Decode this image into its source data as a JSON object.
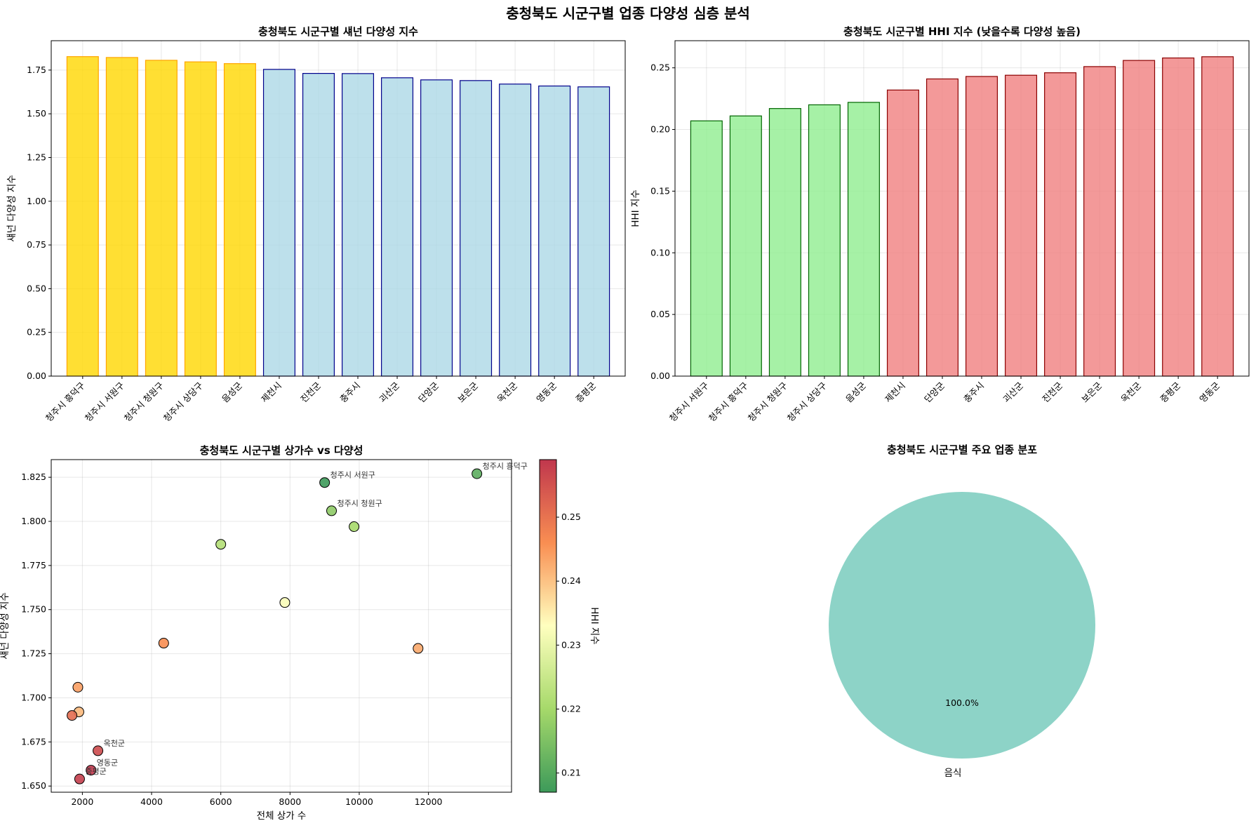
{
  "suptitle": "충청북도 시군구별 업종 다양성 심층 분석",
  "colors": {
    "top_fill": "#FFD700",
    "top_edge": "#FFA500",
    "rest_fill": "#ADD8E6",
    "rest_edge": "#00008B",
    "low_fill": "#90EE90",
    "low_edge": "#006400",
    "high_fill": "#F08080",
    "high_edge": "#8B0000",
    "pie": "#8DD3C7"
  },
  "chart_data": [
    {
      "type": "bar",
      "title": "충청북도 시군구별 섀넌 다양성 지수",
      "xlabel": "",
      "ylabel": "섀넌 다양성 지수",
      "categories": [
        "청주시 흥덕구",
        "청주시 서원구",
        "청주시 청원구",
        "청주시 상당구",
        "음성군",
        "제천시",
        "진천군",
        "충주시",
        "괴산군",
        "단양군",
        "보은군",
        "옥천군",
        "영동군",
        "증평군"
      ],
      "values": [
        1.827,
        1.822,
        1.806,
        1.797,
        1.787,
        1.754,
        1.731,
        1.73,
        1.706,
        1.694,
        1.69,
        1.67,
        1.659,
        1.654
      ],
      "highlight_top": 5,
      "ylim": [
        0,
        1.918
      ],
      "yticks": [
        0.0,
        0.25,
        0.5,
        0.75,
        1.0,
        1.25,
        1.5,
        1.75
      ],
      "ytick_labels": [
        "0.00",
        "0.25",
        "0.50",
        "0.75",
        "1.00",
        "1.25",
        "1.50",
        "1.75"
      ],
      "grid": true
    },
    {
      "type": "bar",
      "title": "충청북도 시군구별 HHI 지수 (낮을수록 다양성 높음)",
      "xlabel": "",
      "ylabel": "HHI 지수",
      "categories": [
        "청주시 서원구",
        "청주시 흥덕구",
        "청주시 청원구",
        "청주시 상당구",
        "음성군",
        "제천시",
        "단양군",
        "충주시",
        "괴산군",
        "진천군",
        "보은군",
        "옥천군",
        "증평군",
        "영동군"
      ],
      "values": [
        0.207,
        0.211,
        0.217,
        0.22,
        0.222,
        0.232,
        0.241,
        0.243,
        0.244,
        0.246,
        0.251,
        0.256,
        0.258,
        0.259
      ],
      "highlight_low": 5,
      "ylim": [
        0,
        0.272
      ],
      "yticks": [
        0.0,
        0.05,
        0.1,
        0.15,
        0.2,
        0.25
      ],
      "ytick_labels": [
        "0.00",
        "0.05",
        "0.10",
        "0.15",
        "0.20",
        "0.25"
      ],
      "grid": true
    },
    {
      "type": "scatter",
      "title": "충청북도 시군구별 상가수 vs 다양성",
      "xlabel": "전체 상가 수",
      "ylabel": "섀넌 다양성 지수",
      "colorbar_label": "HHI 지수",
      "colormap": "RdYlGn_r",
      "xlim": [
        1100,
        14400
      ],
      "ylim": [
        1.6465,
        1.835
      ],
      "xticks": [
        2000,
        4000,
        6000,
        8000,
        10000,
        12000
      ],
      "xtick_labels": [
        "2000",
        "4000",
        "6000",
        "8000",
        "10000",
        "12000"
      ],
      "yticks": [
        1.65,
        1.675,
        1.7,
        1.725,
        1.75,
        1.775,
        1.8,
        1.825
      ],
      "ytick_labels": [
        "1.650",
        "1.675",
        "1.700",
        "1.725",
        "1.750",
        "1.775",
        "1.800",
        "1.825"
      ],
      "clim": [
        0.207,
        0.259
      ],
      "cticks": [
        0.21,
        0.22,
        0.23,
        0.24,
        0.25
      ],
      "ctick_labels": [
        "0.21",
        "0.22",
        "0.23",
        "0.24",
        "0.25"
      ],
      "points": [
        {
          "x": 13400,
          "y": 1.827,
          "hhi": 0.211,
          "label": "청주시 흥덕구"
        },
        {
          "x": 9000,
          "y": 1.822,
          "hhi": 0.207,
          "label": "청주시 서원구"
        },
        {
          "x": 9200,
          "y": 1.806,
          "hhi": 0.217,
          "label": "청주시 청원구"
        },
        {
          "x": 9850,
          "y": 1.797,
          "hhi": 0.22,
          "label": ""
        },
        {
          "x": 6000,
          "y": 1.787,
          "hhi": 0.222,
          "label": ""
        },
        {
          "x": 7850,
          "y": 1.754,
          "hhi": 0.232,
          "label": ""
        },
        {
          "x": 4350,
          "y": 1.731,
          "hhi": 0.246,
          "label": ""
        },
        {
          "x": 11700,
          "y": 1.728,
          "hhi": 0.243,
          "label": ""
        },
        {
          "x": 1870,
          "y": 1.706,
          "hhi": 0.244,
          "label": ""
        },
        {
          "x": 1900,
          "y": 1.692,
          "hhi": 0.241,
          "label": ""
        },
        {
          "x": 1700,
          "y": 1.69,
          "hhi": 0.251,
          "label": ""
        },
        {
          "x": 2450,
          "y": 1.67,
          "hhi": 0.256,
          "label": "옥천군"
        },
        {
          "x": 2250,
          "y": 1.659,
          "hhi": 0.259,
          "label": "영동군"
        },
        {
          "x": 1920,
          "y": 1.654,
          "hhi": 0.258,
          "label": "증평군"
        }
      ],
      "grid": true
    },
    {
      "type": "pie",
      "title": "충청북도 시군구별 주요 업종 분포",
      "slices": [
        {
          "label": "음식",
          "value": 100.0,
          "pct_label": "100.0%"
        }
      ]
    }
  ]
}
